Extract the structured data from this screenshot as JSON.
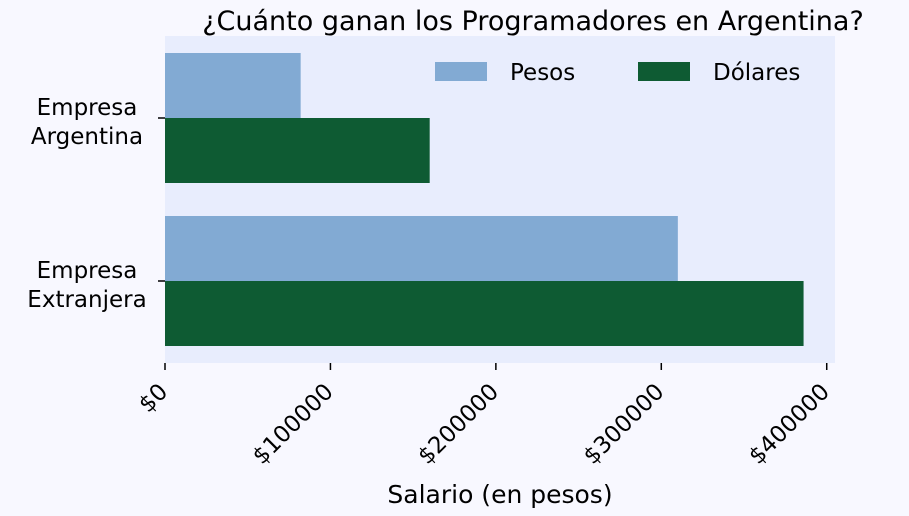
{
  "chart_data": {
    "type": "bar",
    "orientation": "horizontal",
    "title": "¿Cuánto ganan los Programadores en Argentina?",
    "xlabel": "Salario (en pesos)",
    "ylabel": "",
    "categories": [
      [
        "Empresa",
        "Argentina"
      ],
      [
        "Empresa",
        "Extranjera"
      ]
    ],
    "series": [
      {
        "name": "Pesos",
        "color": "#82aad3",
        "values": [
          82000,
          310000
        ]
      },
      {
        "name": "Dólares",
        "color": "#0e5b33",
        "values": [
          160000,
          386000
        ]
      }
    ],
    "xlim": [
      0,
      405000
    ],
    "xticks": [
      0,
      100000,
      200000,
      300000,
      400000
    ],
    "xtick_labels": [
      "$0",
      "$100000",
      "$200000",
      "$300000",
      "$400000"
    ],
    "grid": false,
    "legend_position": "top-right",
    "plot_background": "#e8edfd",
    "page_background": "#f8f8ff"
  }
}
